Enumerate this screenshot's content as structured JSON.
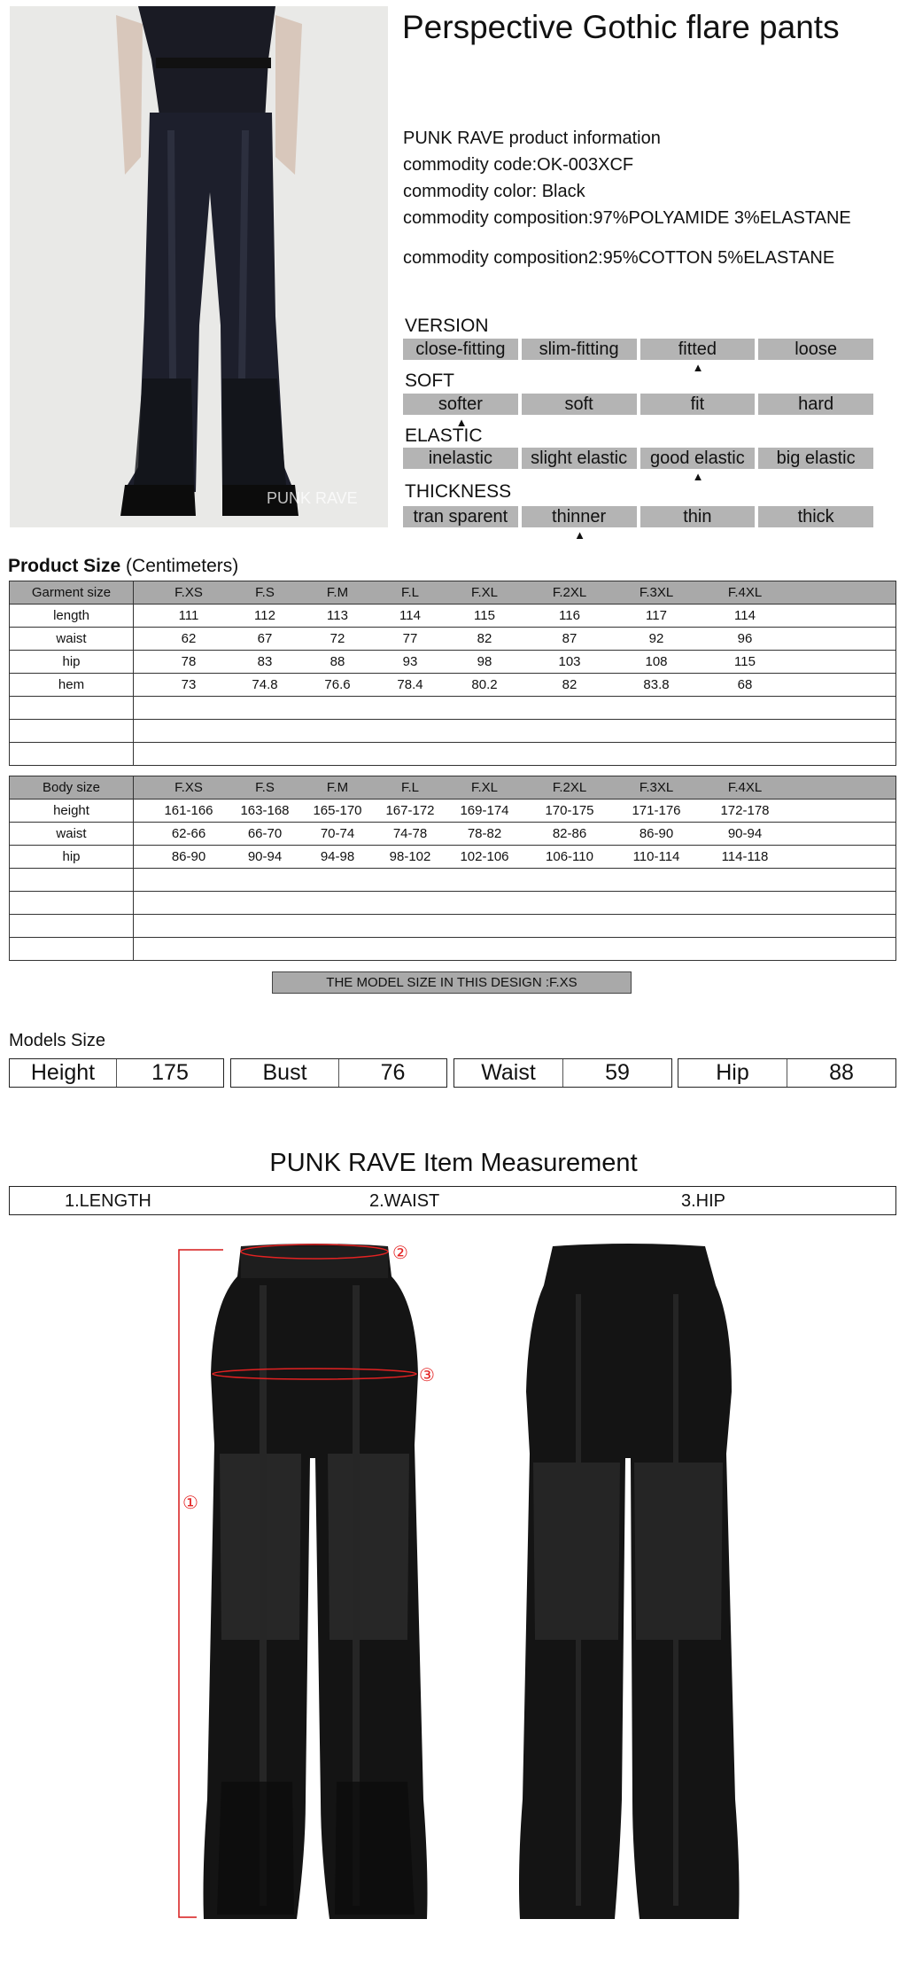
{
  "title": "Perspective Gothic flare pants",
  "photo": {
    "watermark": "PUNK RAVE"
  },
  "info": {
    "brand_line": "PUNK RAVE product information",
    "code": "commodity code:OK-003XCF",
    "color": "commodity color: Black",
    "composition": "commodity composition:97%POLYAMIDE 3%ELASTANE",
    "composition2": "commodity composition2:95%COTTON 5%ELASTANE"
  },
  "attributes": [
    {
      "label": "VERSION",
      "options": [
        "close-fitting",
        "slim-fitting",
        "fitted",
        "loose"
      ],
      "selected": 2
    },
    {
      "label": "SOFT",
      "options": [
        "softer",
        "soft",
        "fit",
        "hard"
      ],
      "selected": 0
    },
    {
      "label": "ELASTIC",
      "options": [
        "inelastic",
        "slight elastic",
        "good elastic",
        "big elastic"
      ],
      "selected": 2
    },
    {
      "label": "THICKNESS",
      "options": [
        "tran sparent",
        "thinner",
        "thin",
        "thick"
      ],
      "selected": 1
    }
  ],
  "product_size": {
    "title": "Product Size",
    "unit": "(Centimeters)",
    "garment": {
      "header": [
        "Garment size",
        "F.XS",
        "F.S",
        "F.M",
        "F.L",
        "F.XL",
        "F.2XL",
        "F.3XL",
        "F.4XL"
      ],
      "rows": [
        [
          "length",
          "111",
          "112",
          "113",
          "114",
          "115",
          "116",
          "117",
          "114"
        ],
        [
          "waist",
          "62",
          "67",
          "72",
          "77",
          "82",
          "87",
          "92",
          "96"
        ],
        [
          "hip",
          "78",
          "83",
          "88",
          "93",
          "98",
          "103",
          "108",
          "115"
        ],
        [
          "hem",
          "73",
          "74.8",
          "76.6",
          "78.4",
          "80.2",
          "82",
          "83.8",
          "68"
        ]
      ]
    },
    "body": {
      "header": [
        "Body size",
        "F.XS",
        "F.S",
        "F.M",
        "F.L",
        "F.XL",
        "F.2XL",
        "F.3XL",
        "F.4XL"
      ],
      "rows": [
        [
          "height",
          "161-166",
          "163-168",
          "165-170",
          "167-172",
          "169-174",
          "170-175",
          "171-176",
          "172-178"
        ],
        [
          "waist",
          "62-66",
          "66-70",
          "70-74",
          "74-78",
          "78-82",
          "82-86",
          "86-90",
          "90-94"
        ],
        [
          "hip",
          "86-90",
          "90-94",
          "94-98",
          "98-102",
          "102-106",
          "106-110",
          "110-114",
          "114-118"
        ]
      ]
    },
    "model_size_note": "THE MODEL SIZE IN THIS DESIGN :F.XS"
  },
  "models_size": {
    "label": "Models Size",
    "items": [
      {
        "name": "Height",
        "value": "175"
      },
      {
        "name": "Bust",
        "value": "76"
      },
      {
        "name": "Waist",
        "value": "59"
      },
      {
        "name": "Hip",
        "value": "88"
      }
    ]
  },
  "measurement": {
    "title": "PUNK RAVE Item  Measurement",
    "items": [
      "1.LENGTH",
      "2.WAIST",
      "3.HIP"
    ],
    "markers": [
      "①",
      "②",
      "③"
    ],
    "accent_color": "#e32222"
  }
}
